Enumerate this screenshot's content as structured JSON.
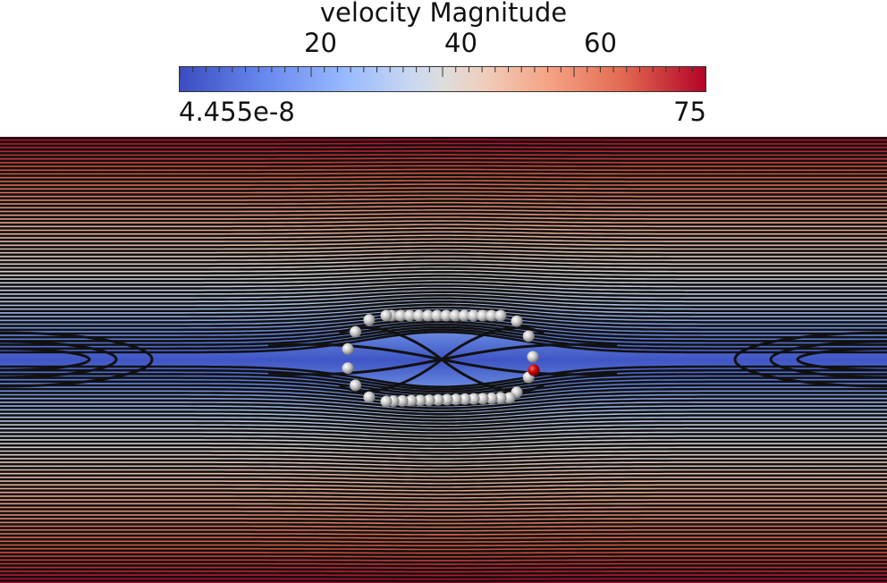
{
  "colorbar": {
    "title": "velocity Magnitude",
    "ticks": [
      "20",
      "40",
      "60"
    ],
    "tick_values": [
      20,
      40,
      60
    ],
    "min_label": "4.455e-8",
    "max_label": "75",
    "min": 0,
    "max": 75,
    "colormap": [
      "#3b4cc0",
      "#9abbff",
      "#dddddd",
      "#f6a385",
      "#b40426"
    ]
  },
  "markers": {
    "body_color": "#c8c8c8",
    "highlight_color": "#cc0000"
  },
  "streamline_color": "#111111"
}
